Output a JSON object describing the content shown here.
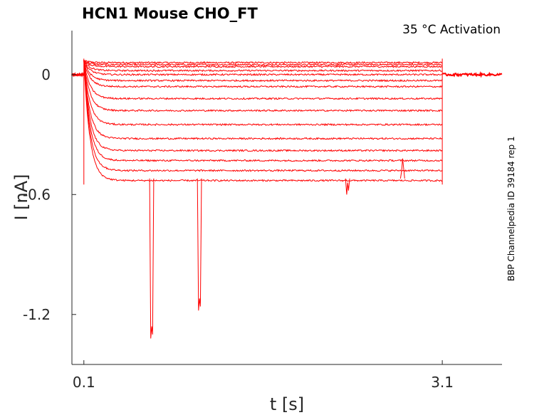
{
  "chart_data": {
    "type": "line",
    "title": "HCN1  Mouse  CHO_FT",
    "subtitle": "35 °C  Activation",
    "side_label": "BBP Channelpedia ID 39184 rep 1",
    "xlabel": "t [s]",
    "ylabel": "I [nA]",
    "xlim": [
      0.0,
      3.6
    ],
    "ylim": [
      -1.45,
      0.22
    ],
    "xticks": [
      0.1,
      3.1
    ],
    "xtick_labels": [
      "0.1",
      "3.1"
    ],
    "yticks": [
      0,
      -0.6,
      -1.2
    ],
    "ytick_labels": [
      "0",
      "-0.6",
      "-1.2"
    ],
    "grid": false,
    "color": "#ff0000",
    "step_start": 0.1,
    "step_end": 3.1,
    "series": [
      {
        "steady_state": 0.06
      },
      {
        "steady_state": 0.05
      },
      {
        "steady_state": 0.04
      },
      {
        "steady_state": 0.02
      },
      {
        "steady_state": 0.0
      },
      {
        "steady_state": -0.03
      },
      {
        "steady_state": -0.06
      },
      {
        "steady_state": -0.12
      },
      {
        "steady_state": -0.18
      },
      {
        "steady_state": -0.25
      },
      {
        "steady_state": -0.32
      },
      {
        "steady_state": -0.38
      },
      {
        "steady_state": -0.43
      },
      {
        "steady_state": -0.48
      },
      {
        "steady_state": -0.53
      }
    ],
    "artifacts": [
      {
        "t": 0.66,
        "min": -1.32
      },
      {
        "t": 1.06,
        "min": -1.18
      },
      {
        "t": 2.76,
        "min": -0.48
      },
      {
        "t": 2.3,
        "min": -0.6
      }
    ]
  }
}
